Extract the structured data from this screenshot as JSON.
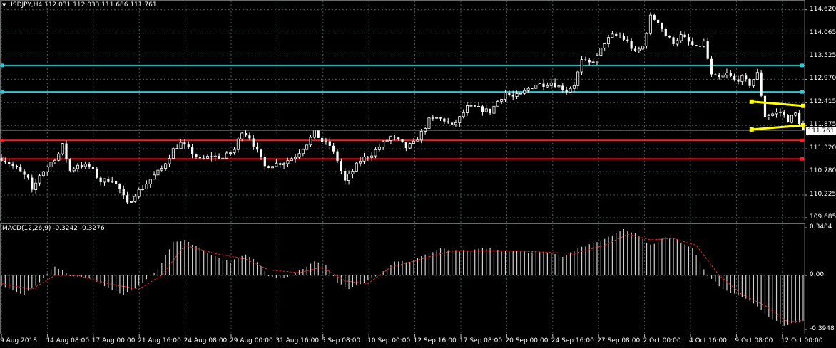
{
  "symbol_header": {
    "title": "USDJPY,H4  112.031 112.033 111.686 111.761"
  },
  "macd_header": {
    "title": "MACD(12,26,9) -0.3242 -0.3276"
  },
  "price_axis": {
    "labels": [
      "114.620",
      "114.065",
      "113.525",
      "112.970",
      "112.415",
      "111.875",
      "111.320",
      "110.780",
      "110.225",
      "109.685"
    ],
    "current_price": "111.761"
  },
  "macd_axis": {
    "labels": [
      "0.3484",
      "0.00",
      "-0.3948"
    ]
  },
  "time_axis": {
    "labels": [
      "9 Aug 2018",
      "14 Aug 08:00",
      "17 Aug 00:00",
      "21 Aug 16:00",
      "24 Aug 08:00",
      "29 Aug 00:00",
      "31 Aug 16:00",
      "5 Sep 08:00",
      "10 Sep 00:00",
      "12 Sep 16:00",
      "17 Sep 08:00",
      "20 Sep 00:00",
      "24 Sep 16:00",
      "27 Sep 08:00",
      "2 Oct 00:00",
      "4 Oct 16:00",
      "9 Oct 08:00",
      "12 Oct 00:00"
    ]
  },
  "horizontal_levels": [
    {
      "name": "cyan-level-upper",
      "price": 113.3,
      "color": "#2ec8d8"
    },
    {
      "name": "cyan-level-lower",
      "price": 112.67,
      "color": "#2ec8d8"
    },
    {
      "name": "red-level-upper",
      "price": 111.52,
      "color": "#ff1a1a"
    },
    {
      "name": "red-level-lower",
      "price": 111.08,
      "color": "#ff1a1a"
    }
  ],
  "colors": {
    "background": "#000000",
    "candle": "#ffffff",
    "grid": "#4a5a5a",
    "macd_hist": "#cfcfcf",
    "macd_signal": "#ff2020",
    "flag": "#ffff00",
    "cyan": "#2ec8d8",
    "red": "#ff1a1a"
  },
  "chart_data": {
    "type": "candlestick",
    "symbol": "USDJPY",
    "timeframe": "H4",
    "ylim": [
      109.6,
      114.75
    ],
    "x_range": [
      "9 Aug 2018",
      "12 Oct 00:00"
    ],
    "price_path_keypoints": [
      [
        0,
        111.1
      ],
      [
        4,
        110.85
      ],
      [
        7,
        110.6
      ],
      [
        8,
        110.3
      ],
      [
        10,
        110.7
      ],
      [
        12,
        110.9
      ],
      [
        15,
        111.2
      ],
      [
        16,
        111.4
      ],
      [
        18,
        110.8
      ],
      [
        20,
        110.95
      ],
      [
        23,
        110.9
      ],
      [
        26,
        110.55
      ],
      [
        29,
        110.6
      ],
      [
        31,
        110.35
      ],
      [
        33,
        110.0
      ],
      [
        35,
        110.25
      ],
      [
        37,
        110.4
      ],
      [
        39,
        110.6
      ],
      [
        42,
        110.85
      ],
      [
        45,
        111.3
      ],
      [
        47,
        111.45
      ],
      [
        49,
        111.3
      ],
      [
        52,
        111.05
      ],
      [
        55,
        111.15
      ],
      [
        58,
        111.1
      ],
      [
        61,
        111.3
      ],
      [
        63,
        111.75
      ],
      [
        65,
        111.6
      ],
      [
        67,
        111.25
      ],
      [
        69,
        110.9
      ],
      [
        71,
        110.95
      ],
      [
        74,
        111.0
      ],
      [
        77,
        111.15
      ],
      [
        80,
        111.45
      ],
      [
        82,
        111.7
      ],
      [
        84,
        111.5
      ],
      [
        86,
        111.4
      ],
      [
        88,
        111.05
      ],
      [
        90,
        110.55
      ],
      [
        92,
        110.8
      ],
      [
        94,
        111.05
      ],
      [
        97,
        111.2
      ],
      [
        100,
        111.45
      ],
      [
        102,
        111.6
      ],
      [
        104,
        111.5
      ],
      [
        106,
        111.35
      ],
      [
        108,
        111.45
      ],
      [
        110,
        111.7
      ],
      [
        112,
        112.0
      ],
      [
        114,
        112.05
      ],
      [
        116,
        112.0
      ],
      [
        118,
        111.85
      ],
      [
        120,
        112.05
      ],
      [
        122,
        112.3
      ],
      [
        124,
        112.3
      ],
      [
        126,
        112.25
      ],
      [
        128,
        112.2
      ],
      [
        130,
        112.45
      ],
      [
        132,
        112.65
      ],
      [
        134,
        112.55
      ],
      [
        136,
        112.6
      ],
      [
        138,
        112.75
      ],
      [
        140,
        112.85
      ],
      [
        142,
        112.85
      ],
      [
        144,
        112.9
      ],
      [
        146,
        112.8
      ],
      [
        148,
        112.7
      ],
      [
        150,
        112.85
      ],
      [
        152,
        113.4
      ],
      [
        154,
        113.35
      ],
      [
        156,
        113.5
      ],
      [
        158,
        113.85
      ],
      [
        160,
        114.0
      ],
      [
        162,
        114.0
      ],
      [
        164,
        113.85
      ],
      [
        166,
        113.6
      ],
      [
        168,
        113.75
      ],
      [
        170,
        114.45
      ],
      [
        172,
        114.35
      ],
      [
        174,
        114.0
      ],
      [
        176,
        113.85
      ],
      [
        178,
        114.0
      ],
      [
        180,
        113.85
      ],
      [
        182,
        113.7
      ],
      [
        184,
        113.85
      ],
      [
        186,
        113.05
      ],
      [
        188,
        113.0
      ],
      [
        190,
        113.1
      ],
      [
        192,
        112.95
      ],
      [
        194,
        113.0
      ],
      [
        196,
        112.85
      ],
      [
        198,
        113.1
      ],
      [
        200,
        112.1
      ],
      [
        202,
        112.15
      ],
      [
        204,
        112.2
      ],
      [
        206,
        112.0
      ],
      [
        208,
        112.15
      ],
      [
        210,
        111.76
      ]
    ],
    "flag_pattern": {
      "upper": [
        [
          196.5,
          112.44
        ],
        [
          210,
          112.34
        ]
      ],
      "lower": [
        [
          196.5,
          111.78
        ],
        [
          210,
          111.88
        ]
      ]
    },
    "macd": {
      "title": "MACD(12,26,9)",
      "values_keypoints": [
        [
          0,
          -0.08
        ],
        [
          6,
          -0.14
        ],
        [
          10,
          -0.05
        ],
        [
          14,
          0.07
        ],
        [
          18,
          0.0
        ],
        [
          23,
          -0.02
        ],
        [
          27,
          -0.08
        ],
        [
          32,
          -0.14
        ],
        [
          36,
          -0.08
        ],
        [
          41,
          0.05
        ],
        [
          45,
          0.24
        ],
        [
          48,
          0.26
        ],
        [
          52,
          0.2
        ],
        [
          56,
          0.14
        ],
        [
          60,
          0.1
        ],
        [
          64,
          0.15
        ],
        [
          67,
          0.1
        ],
        [
          70,
          0.0
        ],
        [
          74,
          -0.02
        ],
        [
          79,
          0.05
        ],
        [
          82,
          0.1
        ],
        [
          85,
          0.08
        ],
        [
          88,
          -0.05
        ],
        [
          91,
          -0.1
        ],
        [
          95,
          -0.05
        ],
        [
          99,
          0.0
        ],
        [
          103,
          0.1
        ],
        [
          107,
          0.1
        ],
        [
          111,
          0.15
        ],
        [
          115,
          0.2
        ],
        [
          119,
          0.18
        ],
        [
          123,
          0.18
        ],
        [
          127,
          0.2
        ],
        [
          131,
          0.18
        ],
        [
          135,
          0.18
        ],
        [
          139,
          0.17
        ],
        [
          143,
          0.17
        ],
        [
          147,
          0.14
        ],
        [
          151,
          0.2
        ],
        [
          155,
          0.23
        ],
        [
          159,
          0.28
        ],
        [
          163,
          0.34
        ],
        [
          166,
          0.31
        ],
        [
          170,
          0.22
        ],
        [
          174,
          0.28
        ],
        [
          177,
          0.26
        ],
        [
          181,
          0.2
        ],
        [
          185,
          0.0
        ],
        [
          189,
          -0.1
        ],
        [
          193,
          -0.15
        ],
        [
          197,
          -0.2
        ],
        [
          201,
          -0.3
        ],
        [
          205,
          -0.37
        ],
        [
          210,
          -0.33
        ]
      ],
      "signal_keypoints": [
        [
          0,
          -0.06
        ],
        [
          8,
          -0.1
        ],
        [
          14,
          0.0
        ],
        [
          20,
          0.0
        ],
        [
          28,
          -0.06
        ],
        [
          36,
          -0.1
        ],
        [
          42,
          0.0
        ],
        [
          48,
          0.22
        ],
        [
          56,
          0.16
        ],
        [
          64,
          0.12
        ],
        [
          70,
          0.04
        ],
        [
          78,
          0.02
        ],
        [
          84,
          0.06
        ],
        [
          90,
          -0.04
        ],
        [
          96,
          -0.06
        ],
        [
          102,
          0.06
        ],
        [
          110,
          0.12
        ],
        [
          118,
          0.18
        ],
        [
          126,
          0.18
        ],
        [
          134,
          0.18
        ],
        [
          142,
          0.17
        ],
        [
          150,
          0.16
        ],
        [
          158,
          0.22
        ],
        [
          164,
          0.3
        ],
        [
          170,
          0.26
        ],
        [
          176,
          0.27
        ],
        [
          182,
          0.22
        ],
        [
          188,
          0.0
        ],
        [
          194,
          -0.14
        ],
        [
          200,
          -0.22
        ],
        [
          206,
          -0.34
        ],
        [
          210,
          -0.33
        ]
      ],
      "ylim": [
        -0.3948,
        0.3484
      ]
    }
  }
}
